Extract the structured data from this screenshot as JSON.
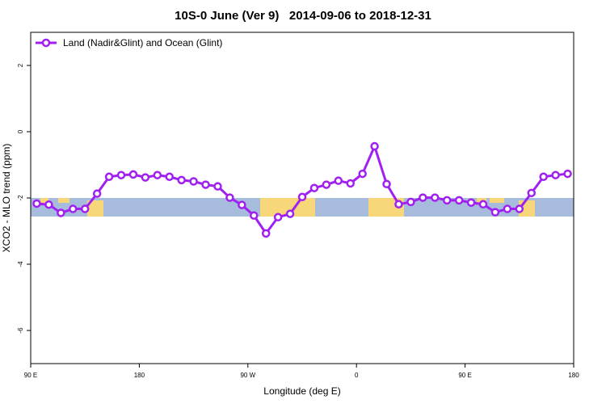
{
  "chart_data": {
    "type": "line",
    "title": "10S-0 June (Ver 9)   2014-09-06 to 2018-12-31",
    "x_label": "Longitude (deg E)",
    "y_label": "XCO2 - MLO trend (ppm)",
    "xlim": [
      90,
      540
    ],
    "ylim": [
      -7,
      3
    ],
    "xticks": [
      {
        "value": 90,
        "label": "90 E"
      },
      180,
      {
        "value": 270,
        "label": "90 W"
      },
      {
        "value": 360,
        "label": "0"
      },
      {
        "value": 450,
        "label": "90 E"
      },
      {
        "value": 540,
        "label": "180"
      }
    ],
    "yticks": [
      -6,
      -4,
      -2,
      0,
      2
    ],
    "legend_position": "top-left",
    "x": [
      95,
      105,
      115,
      125,
      135,
      145,
      155,
      165,
      175,
      185,
      195,
      205,
      215,
      225,
      235,
      245,
      255,
      265,
      275,
      285,
      295,
      305,
      315,
      325,
      335,
      345,
      355,
      365,
      375,
      385,
      395,
      405,
      415,
      425,
      435,
      445,
      455,
      465,
      475,
      485,
      495,
      505,
      515,
      525,
      535
    ],
    "series": [
      {
        "name": "Land (Nadir&Glint) and Ocean (Glint)",
        "color": "#a020f0",
        "values": [
          -2.17,
          -2.2,
          -2.45,
          -2.33,
          -2.33,
          -1.87,
          -1.36,
          -1.31,
          -1.29,
          -1.38,
          -1.31,
          -1.36,
          -1.46,
          -1.5,
          -1.6,
          -1.65,
          -1.99,
          -2.21,
          -2.53,
          -3.07,
          -2.58,
          -2.48,
          -1.97,
          -1.7,
          -1.6,
          -1.48,
          -1.56,
          -1.27,
          -0.44,
          -1.58,
          -2.19,
          -2.12,
          -1.99,
          -1.99,
          -2.07,
          -2.07,
          -2.14,
          -2.19,
          -2.43,
          -2.33,
          -2.33,
          -1.85,
          -1.36,
          -1.31,
          -1.27
        ]
      }
    ]
  }
}
